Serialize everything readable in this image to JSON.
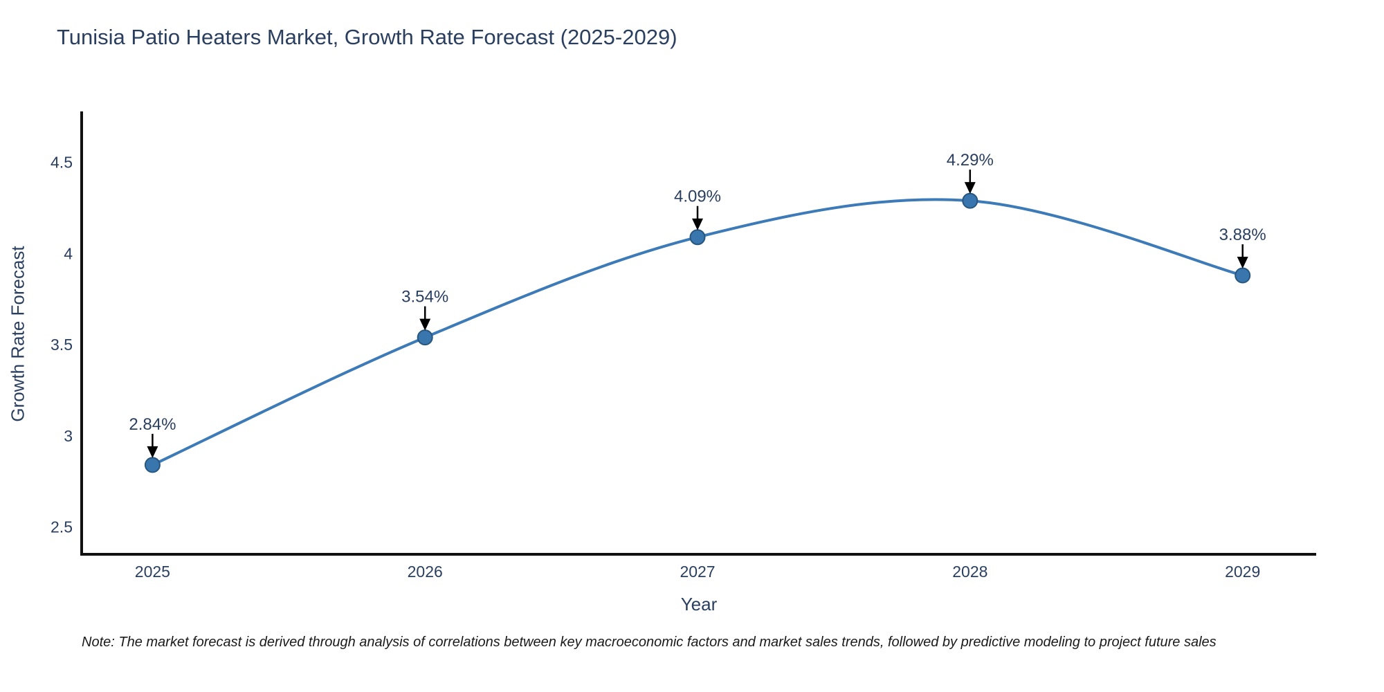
{
  "title": "Tunisia Patio Heaters Market, Growth Rate Forecast (2025-2029)",
  "note": "Note: The market forecast is derived through analysis of correlations between key macroeconomic factors and market sales trends, followed by predictive modeling to project future sales",
  "chart_data": {
    "type": "line",
    "line_shape": "spline",
    "title": "Tunisia Patio Heaters Market, Growth Rate Forecast (2025-2029)",
    "xlabel": "Year",
    "ylabel": "Growth Rate Forecast",
    "x": [
      2025,
      2026,
      2027,
      2028,
      2029
    ],
    "values": [
      2.84,
      3.54,
      4.09,
      4.29,
      3.88
    ],
    "point_labels": [
      "2.84%",
      "3.54%",
      "4.09%",
      "4.29%",
      "3.88%"
    ],
    "xticks": [
      "2025",
      "2026",
      "2027",
      "2028",
      "2029"
    ],
    "yticks": [
      2.5,
      3,
      3.5,
      4,
      4.5
    ],
    "xlim": [
      2024.74,
      2029.27
    ],
    "ylim": [
      2.35,
      4.78
    ],
    "grid": false,
    "legend": false,
    "annotations_arrow": true,
    "colors": {
      "line": "#3d7ab8",
      "marker_fill": "#3a76ae",
      "marker_edge": "#27567f",
      "axis_line": "#111111",
      "tick_text": "#2a3f5f",
      "annotation_text": "#2a3f5f",
      "arrow": "#000000",
      "background": "#ffffff"
    }
  }
}
